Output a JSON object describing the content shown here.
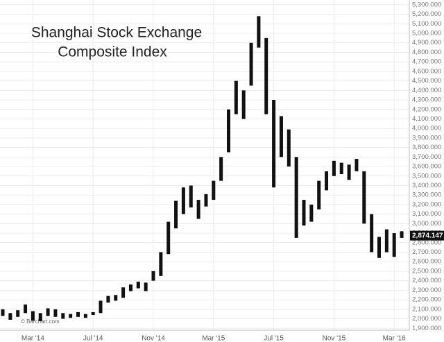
{
  "chart_data": {
    "type": "range-bar",
    "title_lines": [
      "Shanghai Stock Exchange",
      "Composite Index"
    ],
    "watermark": "© Barchart.com",
    "last_price": {
      "value": 2874.147,
      "label": "2,874.147"
    },
    "color": "#111111",
    "grid": true,
    "categories": [
      null,
      null,
      null,
      null,
      "Mar '14",
      null,
      null,
      null,
      null,
      null,
      null,
      null,
      "Jul '14",
      null,
      null,
      null,
      null,
      null,
      null,
      null,
      "Nov '14",
      null,
      null,
      null,
      null,
      null,
      null,
      null,
      "Mar '15",
      null,
      null,
      null,
      null,
      null,
      null,
      null,
      "Jul '15",
      null,
      null,
      null,
      null,
      null,
      null,
      null,
      "Nov '15",
      null,
      null,
      null,
      null,
      null,
      null,
      null,
      "Mar '16",
      null
    ],
    "high": [
      2100,
      2060,
      2090,
      2150,
      2080,
      2060,
      2110,
      2100,
      2060,
      2050,
      2070,
      2050,
      2070,
      2190,
      2240,
      2250,
      2330,
      2360,
      2390,
      2380,
      2500,
      2700,
      3020,
      3240,
      3380,
      3400,
      3250,
      3310,
      3450,
      3700,
      4200,
      4500,
      4400,
      4900,
      5180,
      4950,
      4300,
      4130,
      3990,
      3700,
      3250,
      3200,
      3450,
      3550,
      3660,
      3640,
      3620,
      3680,
      3550,
      3100,
      2860,
      2940,
      2900,
      2920
    ],
    "low": [
      2030,
      1990,
      2020,
      2060,
      1980,
      1975,
      2030,
      2020,
      2000,
      2010,
      2020,
      2010,
      2040,
      2060,
      2170,
      2190,
      2220,
      2290,
      2320,
      2290,
      2400,
      2450,
      2680,
      2950,
      3100,
      3170,
      3050,
      3180,
      3250,
      3450,
      3750,
      4150,
      4100,
      4450,
      4850,
      4150,
      3380,
      3700,
      3600,
      2850,
      2980,
      3020,
      3150,
      3350,
      3500,
      3520,
      3460,
      3550,
      3000,
      2700,
      2640,
      2700,
      2650,
      2850
    ],
    "ylim": [
      1880,
      5350
    ],
    "yticks": [
      {
        "value": 1900,
        "label": "1,900.000"
      },
      {
        "value": 2000,
        "label": "2,000.000"
      },
      {
        "value": 2100,
        "label": "2,100.000"
      },
      {
        "value": 2200,
        "label": "2,200.000"
      },
      {
        "value": 2300,
        "label": "2,300.000"
      },
      {
        "value": 2400,
        "label": "2,400.000"
      },
      {
        "value": 2500,
        "label": "2,500.000"
      },
      {
        "value": 2600,
        "label": "2,600.000"
      },
      {
        "value": 2700,
        "label": "2,700.000"
      },
      {
        "value": 2800,
        "label": "2,800.000"
      },
      {
        "value": 2900,
        "label": "2,900.000"
      },
      {
        "value": 3000,
        "label": "3,000.000"
      },
      {
        "value": 3100,
        "label": "3,100.000"
      },
      {
        "value": 3200,
        "label": "3,200.000"
      },
      {
        "value": 3300,
        "label": "3,300.000"
      },
      {
        "value": 3400,
        "label": "3,400.000"
      },
      {
        "value": 3500,
        "label": "3,500.000"
      },
      {
        "value": 3600,
        "label": "3,600.000"
      },
      {
        "value": 3700,
        "label": "3,700.000"
      },
      {
        "value": 3800,
        "label": "3,800.000"
      },
      {
        "value": 3900,
        "label": "3,900.000"
      },
      {
        "value": 4000,
        "label": "4,000.000"
      },
      {
        "value": 4100,
        "label": "4,100.000"
      },
      {
        "value": 4200,
        "label": "4,200.000"
      },
      {
        "value": 4300,
        "label": "4,300.000"
      },
      {
        "value": 4400,
        "label": "4,400.000"
      },
      {
        "value": 4500,
        "label": "4,500.000"
      },
      {
        "value": 4600,
        "label": "4,600.000"
      },
      {
        "value": 4700,
        "label": "4,700.000"
      },
      {
        "value": 4800,
        "label": "4,800.000"
      },
      {
        "value": 4900,
        "label": "4,900.000"
      },
      {
        "value": 5000,
        "label": "5,000.000"
      },
      {
        "value": 5100,
        "label": "5,100.000"
      },
      {
        "value": 5200,
        "label": "5,200.000"
      },
      {
        "value": 5300,
        "label": "5,300.000"
      }
    ]
  }
}
